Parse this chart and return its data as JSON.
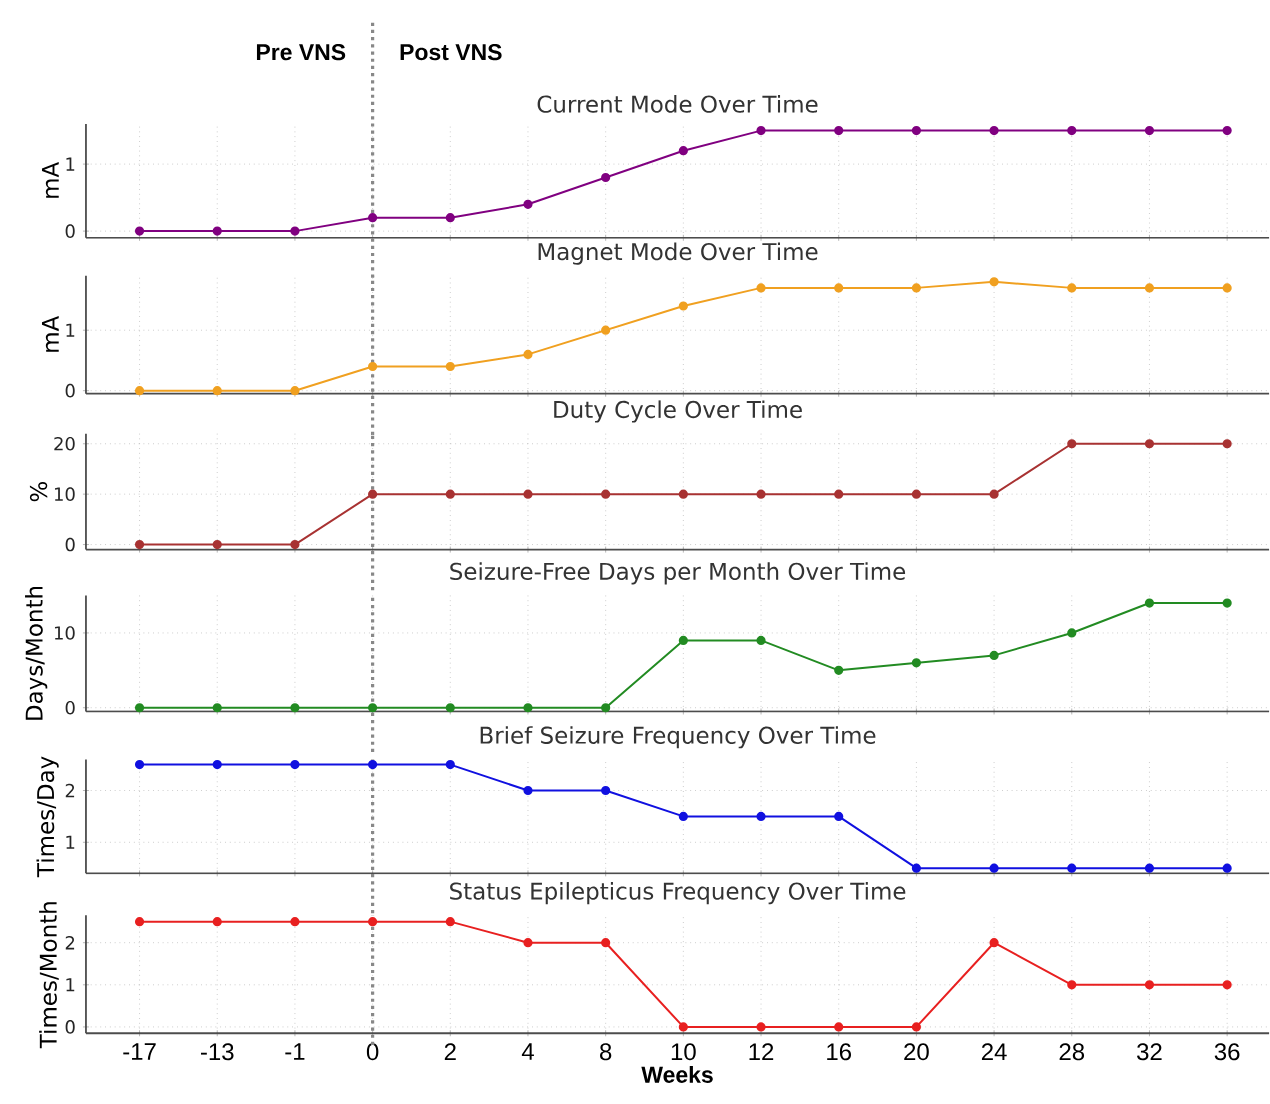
{
  "chart_data": [
    {
      "type": "line",
      "title": "Current Mode Over Time",
      "ylabel": "mA",
      "categories": [
        "-17",
        "-13",
        "-1",
        "0",
        "2",
        "4",
        "8",
        "10",
        "12",
        "16",
        "20",
        "24",
        "28",
        "32",
        "36"
      ],
      "series": [
        {
          "color": "#800080",
          "values": [
            0,
            0,
            0,
            0.2,
            0.2,
            0.4,
            0.8,
            1.2,
            1.5,
            1.5,
            1.5,
            1.5,
            1.5,
            1.5,
            1.5
          ]
        }
      ],
      "ylim": [
        -0.1,
        1.6
      ],
      "yticks": [
        0,
        1
      ],
      "grid": true,
      "marker": "circle",
      "line_style": "solid",
      "tick_labels": "y",
      "ref_lines": [
        {
          "axis": "x",
          "value": "0",
          "color": "#888888",
          "line_style": "dotted"
        }
      ],
      "annotations": [
        "Pre VNS",
        "Post VNS"
      ]
    },
    {
      "type": "line",
      "title": "Magnet Mode Over Time",
      "ylabel": "mA",
      "categories": [
        "-17",
        "-13",
        "-1",
        "0",
        "2",
        "4",
        "8",
        "10",
        "12",
        "16",
        "20",
        "24",
        "28",
        "32",
        "36"
      ],
      "series": [
        {
          "color": "#f0a020",
          "values": [
            0,
            0,
            0,
            0.4,
            0.4,
            0.6,
            1.0,
            1.4,
            1.7,
            1.7,
            1.7,
            1.8,
            1.7,
            1.7,
            1.7
          ]
        }
      ],
      "ylim": [
        -0.05,
        1.9
      ],
      "yticks": [
        0,
        1
      ],
      "grid": true,
      "marker": "circle",
      "line_style": "solid",
      "tick_labels": "y",
      "ref_lines": [
        {
          "axis": "x",
          "value": "0",
          "color": "#888888",
          "line_style": "dotted"
        }
      ]
    },
    {
      "type": "line",
      "title": "Duty Cycle Over Time",
      "ylabel": "%",
      "categories": [
        "-17",
        "-13",
        "-1",
        "0",
        "2",
        "4",
        "8",
        "10",
        "12",
        "16",
        "20",
        "24",
        "28",
        "32",
        "36"
      ],
      "series": [
        {
          "color": "#a83232",
          "values": [
            0,
            0,
            0,
            10,
            10,
            10,
            10,
            10,
            10,
            10,
            10,
            10,
            20,
            20,
            20
          ]
        }
      ],
      "ylim": [
        -1,
        22
      ],
      "yticks": [
        0,
        10,
        20
      ],
      "grid": true,
      "marker": "circle",
      "line_style": "solid",
      "tick_labels": "y",
      "ref_lines": [
        {
          "axis": "x",
          "value": "0",
          "color": "#888888",
          "line_style": "dotted"
        }
      ]
    },
    {
      "type": "line",
      "title": "Seizure-Free Days per Month Over Time",
      "ylabel": "Days/Month",
      "categories": [
        "-17",
        "-13",
        "-1",
        "0",
        "2",
        "4",
        "8",
        "10",
        "12",
        "16",
        "20",
        "24",
        "28",
        "32",
        "36"
      ],
      "series": [
        {
          "color": "#228b22",
          "values": [
            0,
            0,
            0,
            0,
            0,
            0,
            0,
            9,
            9,
            5,
            6,
            7,
            10,
            14,
            14
          ]
        }
      ],
      "ylim": [
        -0.5,
        15
      ],
      "yticks": [
        0,
        10
      ],
      "grid": true,
      "marker": "circle",
      "line_style": "solid",
      "tick_labels": "y",
      "ref_lines": [
        {
          "axis": "x",
          "value": "0",
          "color": "#888888",
          "line_style": "dotted"
        }
      ]
    },
    {
      "type": "line",
      "title": "Brief Seizure Frequency Over Time",
      "ylabel": "Times/Day",
      "categories": [
        "-17",
        "-13",
        "-1",
        "0",
        "2",
        "4",
        "8",
        "10",
        "12",
        "16",
        "20",
        "24",
        "28",
        "32",
        "36"
      ],
      "series": [
        {
          "color": "#1010e0",
          "values": [
            2.5,
            2.5,
            2.5,
            2.5,
            2.5,
            2,
            2,
            1.5,
            1.5,
            1.5,
            0.5,
            0.5,
            0.5,
            0.5,
            0.5
          ]
        }
      ],
      "ylim": [
        0.4,
        2.6
      ],
      "yticks": [
        1,
        2
      ],
      "grid": true,
      "marker": "circle",
      "line_style": "solid",
      "tick_labels": "y",
      "ref_lines": [
        {
          "axis": "x",
          "value": "0",
          "color": "#888888",
          "line_style": "dotted"
        }
      ]
    },
    {
      "type": "line",
      "title": "Status Epilepticus Frequency Over Time",
      "ylabel": "Times/Month",
      "xlabel": "Weeks",
      "categories": [
        "-17",
        "-13",
        "-1",
        "0",
        "2",
        "4",
        "8",
        "10",
        "12",
        "16",
        "20",
        "24",
        "28",
        "32",
        "36"
      ],
      "series": [
        {
          "color": "#e82020",
          "values": [
            2.5,
            2.5,
            2.5,
            2.5,
            2.5,
            2,
            2,
            0,
            0,
            0,
            0,
            2,
            1,
            1,
            1
          ]
        }
      ],
      "ylim": [
        -0.15,
        2.65
      ],
      "yticks": [
        0,
        1,
        2
      ],
      "grid": true,
      "marker": "circle",
      "line_style": "solid",
      "ref_lines": [
        {
          "axis": "x",
          "value": "0",
          "color": "#888888",
          "line_style": "dotted"
        }
      ]
    }
  ]
}
